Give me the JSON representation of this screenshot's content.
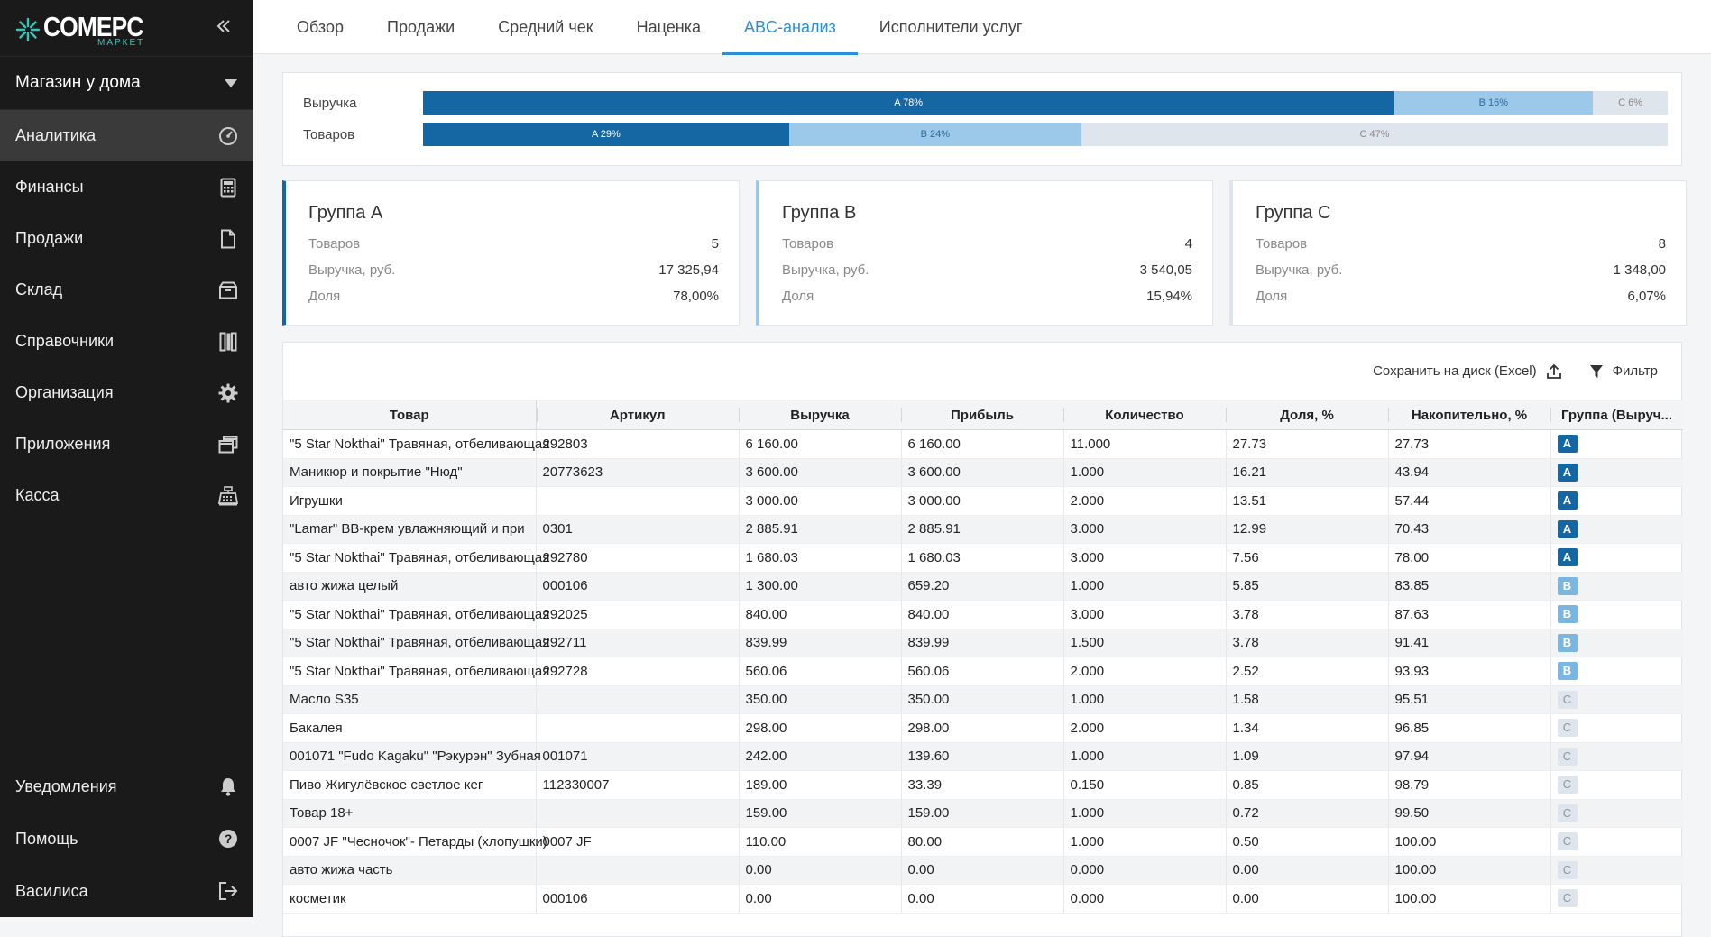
{
  "brand": {
    "name": "COMEPC",
    "sub": "МАРКЕТ"
  },
  "store": {
    "name": "Магазин у дома"
  },
  "nav": {
    "items": [
      {
        "label": "Аналитика",
        "icon": "speedometer-icon"
      },
      {
        "label": "Финансы",
        "icon": "calculator-icon"
      },
      {
        "label": "Продажи",
        "icon": "document-icon"
      },
      {
        "label": "Склад",
        "icon": "box-icon"
      },
      {
        "label": "Справочники",
        "icon": "books-icon"
      },
      {
        "label": "Организация",
        "icon": "gear-icon"
      },
      {
        "label": "Приложения",
        "icon": "windows-icon"
      },
      {
        "label": "Касса",
        "icon": "cash-register-icon"
      }
    ],
    "bottom": [
      {
        "label": "Уведомления",
        "icon": "bell-icon"
      },
      {
        "label": "Помощь",
        "icon": "help-icon"
      },
      {
        "label": "Василиса",
        "icon": "logout-icon"
      }
    ]
  },
  "tabs": [
    "Обзор",
    "Продажи",
    "Средний чек",
    "Наценка",
    "ABC-анализ",
    "Исполнители услуг"
  ],
  "bars": {
    "revenue": {
      "label": "Выручка",
      "a": "A 78%",
      "b": "B 16%",
      "c": "C 6%",
      "a_pct": 78,
      "b_pct": 16,
      "c_pct": 6
    },
    "items": {
      "label": "Товаров",
      "a": "A 29%",
      "b": "B 24%",
      "c": "C 47%",
      "a_pct": 29.4,
      "b_pct": 23.5,
      "c_pct": 47.1
    }
  },
  "groups": [
    {
      "title": "Группа A",
      "items_label": "Товаров",
      "items": "5",
      "revenue_label": "Выручка, руб.",
      "revenue": "17 325,94",
      "share_label": "Доля",
      "share": "78,00%"
    },
    {
      "title": "Группа B",
      "items_label": "Товаров",
      "items": "4",
      "revenue_label": "Выручка, руб.",
      "revenue": "3 540,05",
      "share_label": "Доля",
      "share": "15,94%"
    },
    {
      "title": "Группа C",
      "items_label": "Товаров",
      "items": "8",
      "revenue_label": "Выручка, руб.",
      "revenue": "1 348,00",
      "share_label": "Доля",
      "share": "6,07%"
    }
  ],
  "toolbar": {
    "save": "Сохранить на диск (Excel)",
    "filter": "Фильтр"
  },
  "table": {
    "headers": [
      "Товар",
      "Артикул",
      "Выручка",
      "Прибыль",
      "Количество",
      "Доля, %",
      "Накопительно, %",
      "Группа (Выруч..."
    ],
    "rows": [
      [
        "\"5 Star Nokthai\" Травяная, отбеливающая",
        "292803",
        "6 160.00",
        "6 160.00",
        "11.000",
        "27.73",
        "27.73",
        "A"
      ],
      [
        "Маникюр и покрытие \"Нюд\"",
        "20773623",
        "3 600.00",
        "3 600.00",
        "1.000",
        "16.21",
        "43.94",
        "A"
      ],
      [
        "Игрушки",
        "",
        "3 000.00",
        "3 000.00",
        "2.000",
        "13.51",
        "57.44",
        "A"
      ],
      [
        "\"Lamar\" BB-крем увлажняющий и при",
        "0301",
        "2 885.91",
        "2 885.91",
        "3.000",
        "12.99",
        "70.43",
        "A"
      ],
      [
        "\"5 Star Nokthai\" Травяная, отбеливающая",
        "292780",
        "1 680.03",
        "1 680.03",
        "3.000",
        "7.56",
        "78.00",
        "A"
      ],
      [
        "авто жижа целый",
        "000106",
        "1 300.00",
        "659.20",
        "1.000",
        "5.85",
        "83.85",
        "B"
      ],
      [
        "\"5 Star Nokthai\" Травяная, отбеливающая",
        "292025",
        "840.00",
        "840.00",
        "3.000",
        "3.78",
        "87.63",
        "B"
      ],
      [
        "\"5 Star Nokthai\" Травяная, отбеливающая",
        "292711",
        "839.99",
        "839.99",
        "1.500",
        "3.78",
        "91.41",
        "B"
      ],
      [
        "\"5 Star Nokthai\" Травяная, отбеливающая",
        "292728",
        "560.06",
        "560.06",
        "2.000",
        "2.52",
        "93.93",
        "B"
      ],
      [
        "Масло S35",
        "",
        "350.00",
        "350.00",
        "1.000",
        "1.58",
        "95.51",
        "C"
      ],
      [
        "Бакалея",
        "",
        "298.00",
        "298.00",
        "2.000",
        "1.34",
        "96.85",
        "C"
      ],
      [
        "001071 \"Fudo Kagaku\" \"Рэкурэн\" Зубная",
        "001071",
        "242.00",
        "139.60",
        "1.000",
        "1.09",
        "97.94",
        "C"
      ],
      [
        "Пиво Жигулёвское светлое кег",
        "112330007",
        "189.00",
        "33.39",
        "0.150",
        "0.85",
        "98.79",
        "C"
      ],
      [
        "Товар 18+",
        "",
        "159.00",
        "159.00",
        "1.000",
        "0.72",
        "99.50",
        "C"
      ],
      [
        "0007 JF \"Чесночок\"- Петарды (хлопушки)",
        "0007 JF",
        "110.00",
        "80.00",
        "1.000",
        "0.50",
        "100.00",
        "C"
      ],
      [
        "авто жижа часть",
        "",
        "0.00",
        "0.00",
        "0.000",
        "0.00",
        "100.00",
        "C"
      ],
      [
        "косметик",
        "000106",
        "0.00",
        "0.00",
        "0.000",
        "0.00",
        "100.00",
        "C"
      ]
    ]
  }
}
